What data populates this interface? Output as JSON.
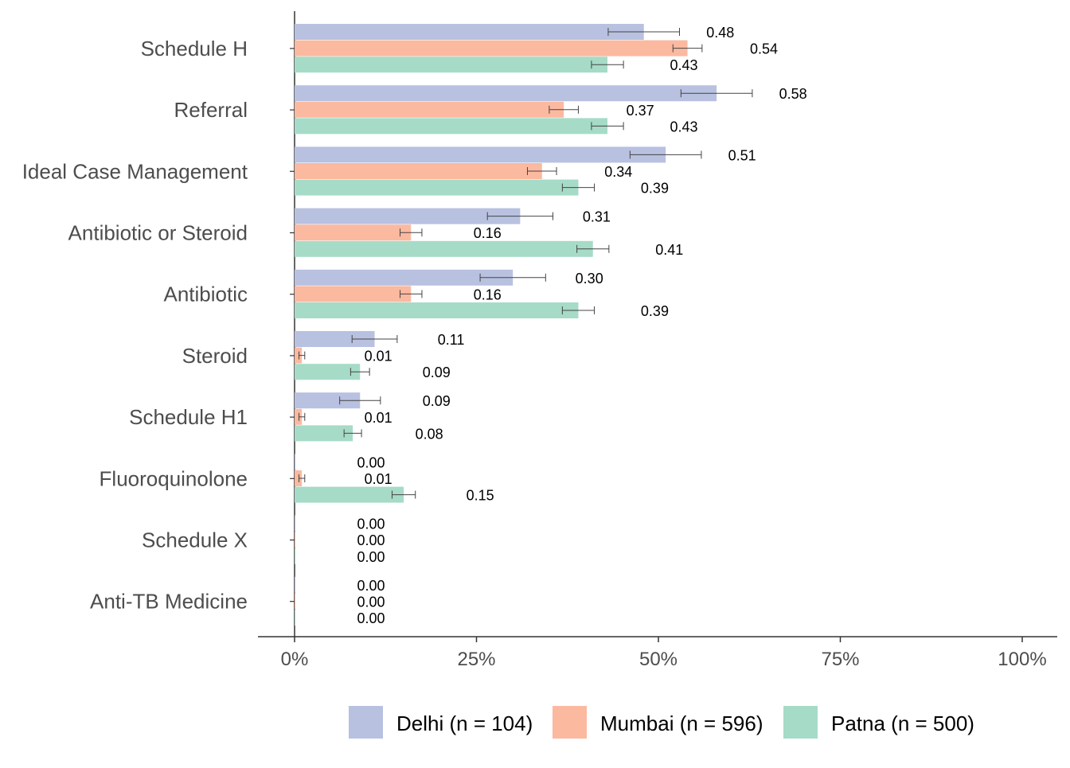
{
  "chart_data": {
    "type": "bar",
    "orientation": "horizontal",
    "categories": [
      "Schedule H",
      "Referral",
      "Ideal Case Management",
      "Antibiotic or Steroid",
      "Antibiotic",
      "Steroid",
      "Schedule H1",
      "Fluoroquinolone",
      "Schedule X",
      "Anti-TB Medicine"
    ],
    "series": [
      {
        "name": "Delhi (n = 104)",
        "color": "#b8c1e0",
        "values": [
          0.48,
          0.58,
          0.51,
          0.31,
          0.3,
          0.11,
          0.09,
          0.0,
          0.0,
          0.0
        ],
        "labels": [
          "0.48",
          "0.58",
          "0.51",
          "0.31",
          "0.30",
          "0.11",
          "0.09",
          "0.00",
          "0.00",
          "0.00"
        ],
        "error": [
          0.049,
          0.049,
          0.049,
          0.045,
          0.045,
          0.031,
          0.028,
          0,
          0,
          0
        ]
      },
      {
        "name": "Mumbai (n = 596)",
        "color": "#fbb9a0",
        "values": [
          0.54,
          0.37,
          0.34,
          0.16,
          0.16,
          0.01,
          0.01,
          0.01,
          0.0,
          0.0
        ],
        "labels": [
          "0.54",
          "0.37",
          "0.34",
          "0.16",
          "0.16",
          "0.01",
          "0.01",
          "0.01",
          "0.00",
          "0.00"
        ],
        "error": [
          0.02,
          0.02,
          0.02,
          0.015,
          0.015,
          0.004,
          0.004,
          0.004,
          0,
          0
        ]
      },
      {
        "name": "Patna (n = 500)",
        "color": "#a6dbc7",
        "values": [
          0.43,
          0.43,
          0.39,
          0.41,
          0.39,
          0.09,
          0.08,
          0.15,
          0.0,
          0.0
        ],
        "labels": [
          "0.43",
          "0.43",
          "0.39",
          "0.41",
          "0.39",
          "0.09",
          "0.08",
          "0.15",
          "0.00",
          "0.00"
        ],
        "error": [
          0.022,
          0.022,
          0.022,
          0.022,
          0.022,
          0.013,
          0.012,
          0.016,
          0,
          0
        ]
      }
    ],
    "x_ticks": [
      "0%",
      "25%",
      "50%",
      "75%",
      "100%"
    ],
    "x_tick_values": [
      0,
      0.25,
      0.5,
      0.75,
      1.0
    ],
    "xlim": [
      0,
      1
    ],
    "title": "",
    "xlabel": "",
    "ylabel": "",
    "grid": false,
    "legend": "bottom",
    "error_bars": true
  }
}
